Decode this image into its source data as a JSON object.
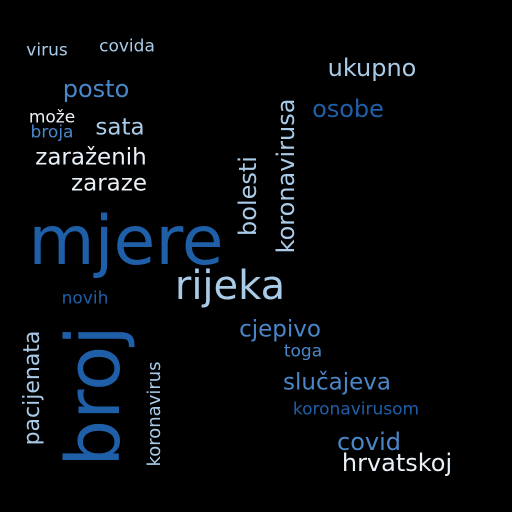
{
  "colors": {
    "background": "#000000",
    "dark_blue": "#1f5fa8",
    "mid_blue": "#4a87c9",
    "light_blue": "#a9cbe8",
    "pale": "#e9f1f8"
  },
  "words": [
    {
      "id": "mjere",
      "text": "mjere",
      "tone": "dark_blue"
    },
    {
      "id": "broj",
      "text": "broj",
      "tone": "dark_blue"
    },
    {
      "id": "rijeka",
      "text": "rijeka",
      "tone": "light_blue"
    },
    {
      "id": "koronavirusa",
      "text": "koronavirusa",
      "tone": "light_blue"
    },
    {
      "id": "bolesti",
      "text": "bolesti",
      "tone": "light_blue"
    },
    {
      "id": "pacijenata",
      "text": "pacijenata",
      "tone": "light_blue"
    },
    {
      "id": "koronavirus",
      "text": "koronavirus",
      "tone": "light_blue"
    },
    {
      "id": "ukupno",
      "text": "ukupno",
      "tone": "light_blue"
    },
    {
      "id": "osobe",
      "text": "osobe",
      "tone": "dark_blue"
    },
    {
      "id": "posto",
      "text": "posto",
      "tone": "mid_blue"
    },
    {
      "id": "sata",
      "text": "sata",
      "tone": "light_blue"
    },
    {
      "id": "zarazenih",
      "text": "zaraženih",
      "tone": "pale"
    },
    {
      "id": "zaraze",
      "text": "zaraze",
      "tone": "pale"
    },
    {
      "id": "virus",
      "text": "virus",
      "tone": "light_blue"
    },
    {
      "id": "covida",
      "text": "covida",
      "tone": "light_blue"
    },
    {
      "id": "moze",
      "text": "može",
      "tone": "pale"
    },
    {
      "id": "broja",
      "text": "broja",
      "tone": "mid_blue"
    },
    {
      "id": "novih",
      "text": "novih",
      "tone": "dark_blue"
    },
    {
      "id": "cjepivo",
      "text": "cjepivo",
      "tone": "mid_blue"
    },
    {
      "id": "toga",
      "text": "toga",
      "tone": "mid_blue"
    },
    {
      "id": "slucajeva",
      "text": "slučajeva",
      "tone": "mid_blue"
    },
    {
      "id": "koronavirusom",
      "text": "koronavirusom",
      "tone": "dark_blue"
    },
    {
      "id": "covid",
      "text": "covid",
      "tone": "mid_blue"
    },
    {
      "id": "hrvatskoj",
      "text": "hrvatskoj",
      "tone": "pale"
    }
  ]
}
